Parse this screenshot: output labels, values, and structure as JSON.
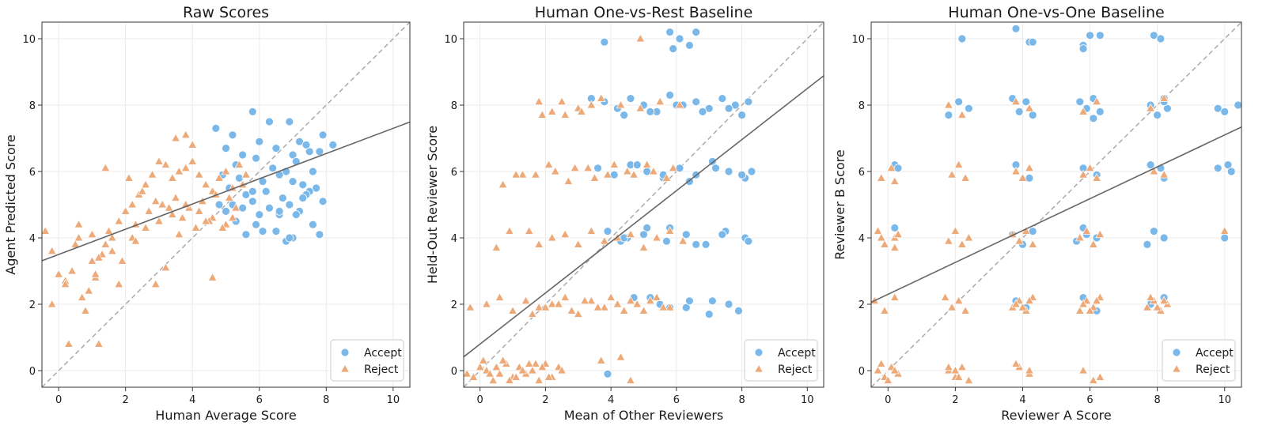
{
  "colors": {
    "accept": "#7ab8ea",
    "reject": "#eda978",
    "fit": "#666666",
    "identity": "#aaaaaa",
    "grid": "#ebebeb"
  },
  "legend": {
    "accept": "Accept",
    "reject": "Reject"
  },
  "chart_data": [
    {
      "type": "scatter",
      "title": "Raw Scores",
      "xlabel": "Human Average Score",
      "ylabel": "Agent Predicted Score",
      "xlim": [
        -0.5,
        10.5
      ],
      "ylim": [
        -0.5,
        10.5
      ],
      "xticks": [
        0,
        2,
        4,
        6,
        8,
        10
      ],
      "yticks": [
        0,
        2,
        4,
        6,
        8,
        10
      ],
      "grid": true,
      "legend_position": "lower-right",
      "fit_line": {
        "slope": 0.38,
        "intercept": 3.5
      },
      "identity_line": true,
      "series": [
        {
          "name": "Accept",
          "marker": "circle",
          "x": [
            4.7,
            5.2,
            5.8,
            6.3,
            6.9,
            7.2,
            7.5,
            7.9,
            8.2,
            5.0,
            5.5,
            6.0,
            6.5,
            7.0,
            7.4,
            7.8,
            5.3,
            5.9,
            6.4,
            6.8,
            7.1,
            7.6,
            4.9,
            5.4,
            6.1,
            6.6,
            7.3,
            7.7,
            5.1,
            5.6,
            6.2,
            6.7,
            7.0,
            7.5,
            5.2,
            5.8,
            6.3,
            6.9,
            7.4,
            7.9,
            5.0,
            5.5,
            6.0,
            6.6,
            7.2,
            4.8,
            5.3,
            5.9,
            6.5,
            7.1,
            7.6,
            5.6,
            6.1,
            6.8,
            7.0,
            7.8,
            6.9,
            7.3,
            5.8,
            6.6
          ],
          "y": [
            7.3,
            7.1,
            7.8,
            7.5,
            7.5,
            6.9,
            6.6,
            7.1,
            6.8,
            6.7,
            6.5,
            6.9,
            6.7,
            6.5,
            6.8,
            6.6,
            6.2,
            6.4,
            6.1,
            6.0,
            6.3,
            6.0,
            5.9,
            5.8,
            5.7,
            5.9,
            5.6,
            5.5,
            5.5,
            5.3,
            5.4,
            5.2,
            5.7,
            5.4,
            5.0,
            5.1,
            4.9,
            5.0,
            5.3,
            5.1,
            4.8,
            4.9,
            4.7,
            4.7,
            4.8,
            5.0,
            4.5,
            4.4,
            4.2,
            4.7,
            4.4,
            4.1,
            4.2,
            3.9,
            4.0,
            4.1,
            4.0,
            5.2,
            5.4,
            4.8
          ]
        },
        {
          "name": "Reject",
          "marker": "triangle",
          "x": [
            -0.4,
            -0.2,
            0.0,
            0.2,
            0.4,
            0.6,
            0.8,
            1.0,
            1.2,
            1.4,
            0.3,
            0.7,
            1.1,
            1.3,
            1.6,
            1.8,
            2.0,
            2.2,
            2.4,
            2.6,
            2.8,
            3.0,
            3.2,
            3.4,
            3.6,
            3.8,
            4.0,
            4.2,
            4.4,
            4.6,
            4.8,
            5.0,
            5.2,
            5.4,
            5.6,
            1.5,
            1.9,
            2.3,
            2.7,
            3.1,
            3.5,
            3.9,
            4.3,
            4.7,
            5.1,
            5.5,
            1.0,
            1.4,
            1.8,
            2.2,
            2.6,
            3.0,
            3.4,
            3.8,
            4.2,
            4.6,
            5.0,
            0.2,
            0.5,
            0.9,
            1.2,
            1.6,
            2.1,
            2.5,
            2.9,
            3.3,
            3.7,
            4.1,
            4.5,
            4.9,
            5.3,
            3.5,
            3.8,
            4.0,
            3.6,
            4.4,
            2.3,
            2.9,
            3.2,
            4.6,
            5.2,
            0.6,
            1.1,
            -0.2
          ],
          "y": [
            4.2,
            2.0,
            2.9,
            2.7,
            3.0,
            4.4,
            1.8,
            4.1,
            0.8,
            6.1,
            0.8,
            2.2,
            2.8,
            3.5,
            3.6,
            4.5,
            4.8,
            5.0,
            5.3,
            5.6,
            5.9,
            6.3,
            6.2,
            5.8,
            6.0,
            6.1,
            6.3,
            5.9,
            5.6,
            5.4,
            5.8,
            6.0,
            5.5,
            6.2,
            5.9,
            4.2,
            3.3,
            4.4,
            4.8,
            5.0,
            5.2,
            4.9,
            5.1,
            5.3,
            5.2,
            5.6,
            3.3,
            3.8,
            2.6,
            4.0,
            4.3,
            4.5,
            4.7,
            5.0,
            4.8,
            4.6,
            4.4,
            2.6,
            3.8,
            2.4,
            3.4,
            4.0,
            5.8,
            5.4,
            5.1,
            4.9,
            4.6,
            4.3,
            4.5,
            4.3,
            4.9,
            7.0,
            7.1,
            6.8,
            4.1,
            4.5,
            3.9,
            2.6,
            3.1,
            2.8,
            4.6,
            4.0,
            2.9,
            3.6
          ]
        }
      ]
    },
    {
      "type": "scatter",
      "title": "Human One-vs-Rest Baseline",
      "xlabel": "Mean of Other Reviewers",
      "ylabel": "Held-Out Reviewer Score",
      "xlim": [
        -0.5,
        10.5
      ],
      "ylim": [
        -0.5,
        10.5
      ],
      "xticks": [
        0,
        2,
        4,
        6,
        8,
        10
      ],
      "yticks": [
        0,
        2,
        4,
        6,
        8,
        10
      ],
      "grid": true,
      "legend_position": "lower-right",
      "fit_line": {
        "slope": 0.77,
        "intercept": 0.8
      },
      "identity_line": true,
      "series": [
        {
          "name": "Accept",
          "marker": "circle",
          "x": [
            3.8,
            5.8,
            6.1,
            6.6,
            5.9,
            6.4,
            3.4,
            3.8,
            4.2,
            4.6,
            5.0,
            5.4,
            5.8,
            6.2,
            6.6,
            7.0,
            7.4,
            7.8,
            8.2,
            4.4,
            5.2,
            6.0,
            6.8,
            7.6,
            8.0,
            3.6,
            4.1,
            4.6,
            5.1,
            5.6,
            6.1,
            6.6,
            7.1,
            7.6,
            8.1,
            4.8,
            5.6,
            6.4,
            7.2,
            8.0,
            8.3,
            3.9,
            4.5,
            5.1,
            5.7,
            6.3,
            6.9,
            7.5,
            8.1,
            4.3,
            5.0,
            5.8,
            6.6,
            7.4,
            8.2,
            4.7,
            5.5,
            6.3,
            7.1,
            7.9,
            5.2,
            5.8,
            6.4,
            7.0,
            7.6,
            3.9,
            4.4
          ],
          "y": [
            9.9,
            10.2,
            10.0,
            10.2,
            9.7,
            9.8,
            8.2,
            8.1,
            7.9,
            8.2,
            8.0,
            7.8,
            8.3,
            8.0,
            8.1,
            7.9,
            8.2,
            8.0,
            8.1,
            7.7,
            7.8,
            8.0,
            7.8,
            7.9,
            7.7,
            6.1,
            5.9,
            6.2,
            6.0,
            5.8,
            6.1,
            5.9,
            6.3,
            6.0,
            5.8,
            6.2,
            5.9,
            5.7,
            6.1,
            5.9,
            6.0,
            4.2,
            4.0,
            4.3,
            3.9,
            4.1,
            3.8,
            4.2,
            4.0,
            3.9,
            4.1,
            4.3,
            3.8,
            4.1,
            3.9,
            2.2,
            2.0,
            1.9,
            2.1,
            1.8,
            2.2,
            1.9,
            2.1,
            1.7,
            2.0,
            -0.1,
            4.0
          ]
        },
        {
          "name": "Reject",
          "marker": "triangle",
          "x": [
            4.9,
            1.8,
            2.2,
            2.6,
            3.0,
            3.4,
            -0.4,
            -0.2,
            0.0,
            0.2,
            0.4,
            0.6,
            0.8,
            1.0,
            1.2,
            1.4,
            1.6,
            1.8,
            2.0,
            2.2,
            2.4,
            0.1,
            0.5,
            0.9,
            1.3,
            1.7,
            2.1,
            2.5,
            0.3,
            0.7,
            1.1,
            1.5,
            1.9,
            -0.3,
            0.2,
            0.6,
            1.0,
            1.4,
            1.8,
            2.2,
            2.6,
            3.0,
            3.4,
            3.8,
            4.2,
            4.6,
            5.0,
            5.4,
            5.8,
            1.6,
            2.0,
            2.4,
            2.8,
            3.2,
            3.6,
            4.0,
            4.4,
            4.8,
            5.2,
            5.6,
            1.8,
            2.2,
            2.6,
            3.0,
            3.4,
            3.8,
            4.2,
            4.6,
            5.0,
            5.4,
            5.8,
            6.2,
            1.7,
            2.3,
            2.9,
            3.5,
            4.1,
            4.7,
            5.3,
            5.9,
            2.1,
            2.7,
            3.3,
            3.9,
            4.5,
            5.1,
            5.7,
            1.9,
            2.5,
            3.1,
            3.7,
            4.3,
            4.9,
            5.5,
            6.1,
            0.5,
            0.9,
            1.3,
            0.7,
            1.1,
            1.5,
            3.7,
            4.3,
            4.6
          ],
          "y": [
            10.0,
            8.1,
            7.8,
            7.7,
            7.9,
            8.0,
            -0.1,
            -0.2,
            0.1,
            0.0,
            -0.3,
            -0.1,
            0.2,
            -0.2,
            0.1,
            -0.1,
            0.0,
            -0.3,
            0.2,
            -0.2,
            0.1,
            0.3,
            0.1,
            -0.3,
            0.0,
            0.2,
            -0.2,
            0.0,
            -0.1,
            0.3,
            -0.2,
            0.2,
            0.1,
            1.9,
            2.0,
            2.2,
            1.8,
            2.1,
            1.9,
            2.0,
            2.2,
            1.7,
            2.1,
            1.9,
            2.0,
            2.1,
            1.8,
            2.2,
            1.9,
            1.7,
            1.9,
            2.0,
            1.8,
            2.1,
            1.9,
            2.2,
            1.8,
            2.0,
            2.1,
            1.9,
            3.8,
            4.0,
            4.1,
            3.8,
            4.2,
            3.9,
            4.0,
            4.1,
            3.7,
            4.0,
            4.2,
            3.9,
            5.9,
            6.0,
            6.1,
            5.8,
            6.2,
            5.9,
            6.0,
            6.1,
            6.2,
            5.7,
            6.1,
            5.9,
            6.0,
            6.2,
            5.8,
            7.7,
            8.1,
            7.8,
            8.2,
            8.0,
            7.9,
            8.1,
            8.0,
            3.7,
            4.2,
            5.9,
            5.6,
            5.9,
            4.2,
            0.3,
            0.4,
            -0.3
          ]
        }
      ]
    },
    {
      "type": "scatter",
      "title": "Human One-vs-One Baseline",
      "xlabel": "Reviewer A Score",
      "ylabel": "Reviewer B Score",
      "xlim": [
        -0.5,
        10.5
      ],
      "ylim": [
        -0.5,
        10.5
      ],
      "xticks": [
        0,
        2,
        4,
        6,
        8,
        10
      ],
      "yticks": [
        0,
        2,
        4,
        6,
        8,
        10
      ],
      "grid": true,
      "legend_position": "lower-right",
      "fit_line": {
        "slope": 0.48,
        "intercept": 2.3
      },
      "identity_line": true,
      "series": [
        {
          "name": "Accept",
          "marker": "circle",
          "x": [
            2.2,
            3.8,
            4.2,
            5.8,
            6.0,
            6.3,
            7.9,
            8.1,
            0.2,
            9.8,
            10.0,
            10.4,
            1.8,
            2.1,
            2.4,
            3.7,
            3.9,
            4.1,
            4.3,
            5.7,
            5.9,
            6.1,
            6.3,
            7.8,
            8.0,
            8.2,
            8.3,
            3.8,
            4.2,
            5.8,
            6.2,
            7.8,
            8.2,
            9.8,
            10.1,
            10.2,
            0.2,
            3.7,
            4.0,
            4.3,
            5.6,
            5.9,
            6.2,
            7.7,
            7.9,
            8.2,
            3.8,
            4.1,
            5.8,
            6.2,
            7.8,
            8.2,
            5.8,
            6.1,
            8.1,
            8.2,
            10.0,
            0.3,
            4.3,
            5.8
          ],
          "y": [
            10.0,
            10.3,
            9.9,
            9.8,
            10.1,
            10.1,
            10.1,
            10.0,
            6.2,
            7.9,
            7.8,
            8.0,
            7.7,
            8.1,
            7.9,
            8.2,
            7.8,
            8.1,
            7.7,
            8.1,
            7.9,
            8.2,
            7.8,
            8.0,
            7.7,
            8.2,
            7.9,
            6.2,
            5.8,
            6.1,
            5.9,
            6.2,
            5.8,
            6.1,
            6.2,
            6.0,
            4.3,
            4.1,
            3.8,
            4.2,
            3.9,
            4.1,
            4.0,
            3.8,
            4.2,
            4.0,
            2.1,
            1.9,
            2.2,
            1.8,
            2.0,
            2.2,
            9.7,
            7.6,
            6.1,
            8.1,
            4.0,
            6.1,
            9.9,
            4.3
          ]
        },
        {
          "name": "Reject",
          "marker": "triangle",
          "x": [
            -0.3,
            -0.1,
            0.1,
            0.3,
            -0.2,
            0.0,
            0.2,
            -0.4,
            -0.1,
            0.2,
            1.8,
            2.0,
            2.2,
            2.4,
            1.9,
            2.1,
            2.3,
            1.7,
            3.7,
            3.9,
            4.1,
            4.3,
            3.8,
            4.0,
            4.2,
            5.7,
            5.9,
            6.1,
            6.3,
            5.8,
            6.0,
            6.2,
            7.7,
            7.9,
            8.1,
            8.3,
            7.8,
            8.0,
            8.2,
            -0.3,
            -0.1,
            0.2,
            0.3,
            1.8,
            2.0,
            2.2,
            2.4,
            3.7,
            3.9,
            4.1,
            4.3,
            5.7,
            5.9,
            6.1,
            6.3,
            -0.2,
            0.1,
            1.9,
            2.1,
            2.3,
            3.8,
            4.0,
            4.2,
            5.8,
            6.0,
            6.2,
            7.9,
            8.2,
            -0.2,
            0.2,
            1.8,
            2.2,
            3.8,
            4.2,
            5.8,
            6.2,
            7.8,
            8.2,
            1.8,
            2.1,
            3.9,
            4.2,
            5.8,
            6.1,
            2.0,
            3.8,
            4.2,
            6.3,
            10.0,
            0.2
          ],
          "y": [
            0.0,
            -0.2,
            0.1,
            -0.1,
            0.2,
            -0.3,
            0.0,
            2.1,
            1.8,
            2.2,
            0.0,
            -0.2,
            0.1,
            -0.3,
            1.9,
            2.1,
            1.8,
            2.2,
            1.9,
            2.1,
            1.8,
            2.2,
            2.0,
            1.9,
            2.1,
            1.8,
            2.1,
            1.9,
            2.2,
            2.0,
            1.8,
            2.1,
            1.9,
            2.1,
            1.8,
            2.0,
            2.2,
            1.9,
            2.1,
            4.2,
            3.8,
            4.0,
            4.1,
            3.9,
            4.2,
            3.8,
            4.0,
            4.1,
            3.9,
            4.2,
            3.8,
            4.0,
            4.2,
            3.8,
            4.1,
            5.8,
            6.1,
            5.9,
            6.2,
            5.8,
            6.0,
            5.8,
            6.1,
            5.9,
            6.1,
            5.8,
            6.0,
            5.9,
            4.0,
            3.7,
            8.0,
            7.7,
            8.1,
            7.9,
            7.8,
            8.1,
            7.9,
            8.2,
            0.1,
            -0.2,
            0.1,
            -0.1,
            0.0,
            -0.3,
            0.0,
            0.2,
            0.0,
            -0.2,
            4.2,
            5.7
          ]
        }
      ]
    }
  ]
}
